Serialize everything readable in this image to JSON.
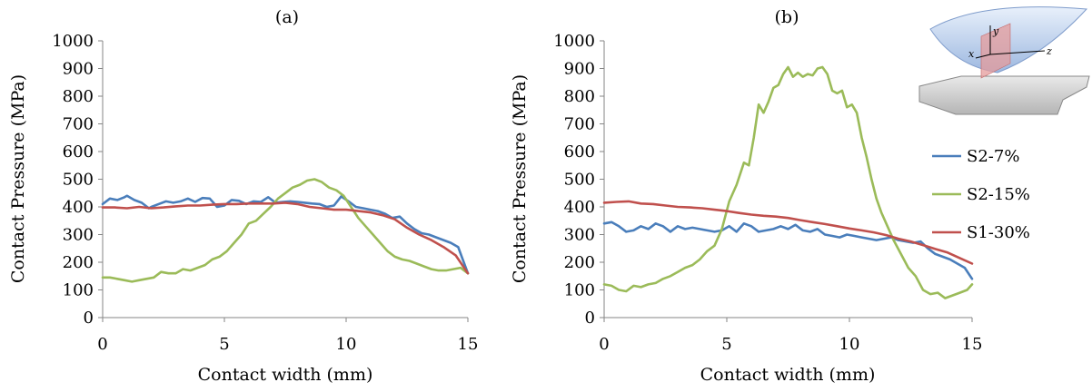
{
  "chart_data": [
    {
      "type": "line",
      "title": "(a)",
      "xlabel": "Contact width (mm)",
      "ylabel": "Contact Pressure (MPa)",
      "xlim": [
        0,
        15
      ],
      "ylim": [
        0,
        1000
      ],
      "xticks": [
        0,
        5,
        10,
        15
      ],
      "yticks": [
        0,
        100,
        200,
        300,
        400,
        500,
        600,
        700,
        800,
        900,
        1000
      ],
      "grid": false,
      "series": [
        {
          "name": "S2-7%",
          "color": "#4a7ebb",
          "x": [
            0,
            0.3,
            0.6,
            0.9,
            1.0,
            1.3,
            1.6,
            1.9,
            2.0,
            2.3,
            2.6,
            2.9,
            3.2,
            3.5,
            3.8,
            4.1,
            4.4,
            4.7,
            5.0,
            5.3,
            5.6,
            5.9,
            6.2,
            6.5,
            6.8,
            7.1,
            7.4,
            7.7,
            8.0,
            8.3,
            8.6,
            8.9,
            9.2,
            9.5,
            9.8,
            10.1,
            10.4,
            10.7,
            11.0,
            11.3,
            11.6,
            11.9,
            12.2,
            12.5,
            12.8,
            13.1,
            13.4,
            13.7,
            14.0,
            14.3,
            14.6,
            15.0
          ],
          "y": [
            410,
            430,
            425,
            435,
            440,
            425,
            415,
            395,
            400,
            410,
            420,
            415,
            420,
            430,
            418,
            432,
            430,
            400,
            405,
            425,
            422,
            410,
            420,
            418,
            435,
            415,
            418,
            420,
            418,
            415,
            412,
            410,
            400,
            405,
            438,
            420,
            400,
            395,
            390,
            385,
            375,
            360,
            365,
            340,
            320,
            305,
            300,
            290,
            280,
            270,
            255,
            160
          ]
        },
        {
          "name": "S2-15%",
          "color": "#9bbb59",
          "x": [
            0,
            0.3,
            0.6,
            0.9,
            1.2,
            1.5,
            1.8,
            2.1,
            2.4,
            2.7,
            3.0,
            3.3,
            3.6,
            3.9,
            4.2,
            4.5,
            4.8,
            5.1,
            5.4,
            5.7,
            6.0,
            6.3,
            6.6,
            6.9,
            7.2,
            7.5,
            7.8,
            8.1,
            8.4,
            8.7,
            9.0,
            9.3,
            9.6,
            9.9,
            10.2,
            10.5,
            10.8,
            11.1,
            11.4,
            11.7,
            12.0,
            12.3,
            12.6,
            12.9,
            13.2,
            13.5,
            13.8,
            14.1,
            14.4,
            14.7,
            15.0
          ],
          "y": [
            145,
            145,
            140,
            135,
            130,
            135,
            140,
            145,
            165,
            160,
            160,
            175,
            170,
            180,
            190,
            210,
            220,
            240,
            270,
            300,
            340,
            350,
            375,
            400,
            430,
            450,
            470,
            480,
            495,
            500,
            490,
            470,
            460,
            440,
            400,
            360,
            330,
            300,
            270,
            240,
            220,
            210,
            205,
            195,
            185,
            175,
            170,
            170,
            175,
            180,
            160
          ]
        },
        {
          "name": "S1-30%",
          "color": "#c0504d",
          "x": [
            0,
            0.5,
            1.0,
            1.5,
            2.0,
            2.5,
            3.0,
            3.5,
            4.0,
            4.5,
            5.0,
            5.5,
            6.0,
            6.5,
            7.0,
            7.5,
            8.0,
            8.5,
            9.0,
            9.5,
            10.0,
            10.5,
            11.0,
            11.5,
            12.0,
            12.5,
            13.0,
            13.5,
            14.0,
            14.5,
            15.0
          ],
          "y": [
            398,
            398,
            395,
            400,
            395,
            398,
            402,
            405,
            405,
            408,
            410,
            410,
            412,
            412,
            412,
            415,
            410,
            400,
            395,
            390,
            390,
            385,
            380,
            370,
            355,
            325,
            300,
            280,
            255,
            225,
            160
          ]
        }
      ]
    },
    {
      "type": "line",
      "title": "(b)",
      "xlabel": "Contact width (mm)",
      "ylabel": "Contact Pressure (MPa)",
      "xlim": [
        0,
        15
      ],
      "ylim": [
        0,
        1000
      ],
      "xticks": [
        0,
        5,
        10,
        15
      ],
      "yticks": [
        0,
        100,
        200,
        300,
        400,
        500,
        600,
        700,
        800,
        900,
        1000
      ],
      "grid": false,
      "legend_position": "right",
      "series": [
        {
          "name": "S2-7%",
          "color": "#4a7ebb",
          "x": [
            0,
            0.3,
            0.6,
            0.9,
            1.2,
            1.5,
            1.8,
            2.1,
            2.4,
            2.7,
            3.0,
            3.3,
            3.6,
            3.9,
            4.2,
            4.5,
            4.8,
            5.1,
            5.4,
            5.7,
            6.0,
            6.3,
            6.6,
            6.9,
            7.2,
            7.5,
            7.8,
            8.1,
            8.4,
            8.7,
            9.0,
            9.3,
            9.6,
            9.9,
            10.2,
            10.5,
            10.8,
            11.1,
            11.4,
            11.7,
            12.0,
            12.3,
            12.6,
            12.9,
            13.2,
            13.5,
            13.8,
            14.1,
            14.4,
            14.7,
            15.0
          ],
          "y": [
            340,
            345,
            330,
            310,
            315,
            330,
            320,
            340,
            330,
            310,
            330,
            320,
            325,
            320,
            315,
            310,
            315,
            330,
            310,
            340,
            330,
            310,
            315,
            320,
            330,
            320,
            335,
            315,
            310,
            320,
            300,
            295,
            290,
            300,
            295,
            290,
            285,
            280,
            285,
            290,
            280,
            275,
            270,
            275,
            250,
            230,
            220,
            210,
            195,
            180,
            140
          ]
        },
        {
          "name": "S2-15%",
          "color": "#9bbb59",
          "x": [
            0,
            0.3,
            0.6,
            0.9,
            1.2,
            1.5,
            1.8,
            2.1,
            2.4,
            2.7,
            3.0,
            3.3,
            3.6,
            3.9,
            4.2,
            4.5,
            4.8,
            5.1,
            5.4,
            5.7,
            5.9,
            6.1,
            6.3,
            6.5,
            6.7,
            6.9,
            7.1,
            7.3,
            7.5,
            7.7,
            7.9,
            8.1,
            8.3,
            8.5,
            8.7,
            8.9,
            9.1,
            9.3,
            9.5,
            9.7,
            9.9,
            10.1,
            10.3,
            10.5,
            10.7,
            10.9,
            11.1,
            11.3,
            11.5,
            11.8,
            12.1,
            12.4,
            12.7,
            13.0,
            13.3,
            13.6,
            13.9,
            14.2,
            14.5,
            14.8,
            15.0
          ],
          "y": [
            120,
            115,
            100,
            95,
            115,
            110,
            120,
            125,
            140,
            150,
            165,
            180,
            190,
            210,
            240,
            260,
            320,
            420,
            480,
            560,
            550,
            650,
            770,
            740,
            780,
            830,
            840,
            880,
            905,
            870,
            885,
            870,
            880,
            875,
            900,
            905,
            880,
            820,
            810,
            820,
            760,
            770,
            740,
            650,
            580,
            500,
            430,
            380,
            340,
            280,
            230,
            180,
            150,
            100,
            85,
            90,
            70,
            80,
            90,
            100,
            120
          ]
        },
        {
          "name": "S1-30%",
          "color": "#c0504d",
          "x": [
            0,
            0.5,
            1.0,
            1.5,
            2.0,
            2.5,
            3.0,
            3.5,
            4.0,
            4.5,
            5.0,
            5.5,
            6.0,
            6.5,
            7.0,
            7.5,
            8.0,
            8.5,
            9.0,
            9.5,
            10.0,
            10.5,
            11.0,
            11.5,
            12.0,
            12.5,
            13.0,
            13.5,
            14.0,
            14.5,
            15.0
          ],
          "y": [
            415,
            418,
            420,
            412,
            410,
            405,
            400,
            398,
            395,
            390,
            385,
            378,
            372,
            368,
            365,
            360,
            352,
            345,
            338,
            330,
            322,
            315,
            308,
            298,
            285,
            275,
            262,
            248,
            235,
            215,
            195
          ]
        }
      ]
    }
  ]
}
